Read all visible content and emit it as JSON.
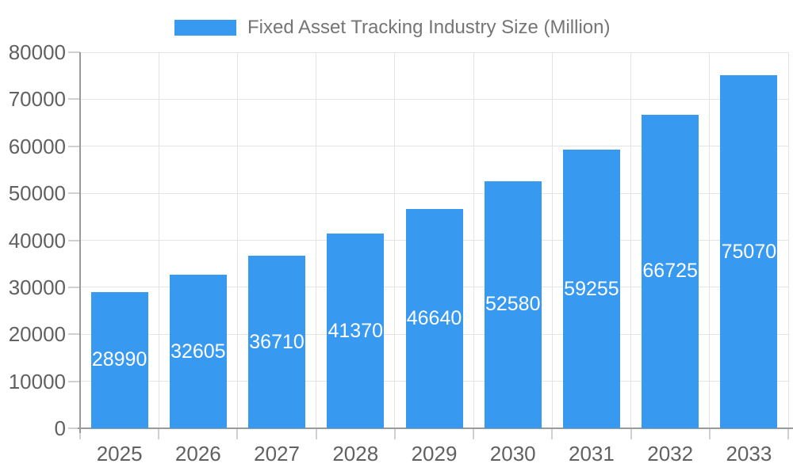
{
  "legend": {
    "label": "Fixed Asset Tracking Industry Size (Million)"
  },
  "chart_data": {
    "type": "bar",
    "title": "Fixed Asset Tracking Industry Size (Million)",
    "series_name": "Fixed Asset Tracking Industry Size (Million)",
    "categories": [
      "2025",
      "2026",
      "2027",
      "2028",
      "2029",
      "2030",
      "2031",
      "2032",
      "2033"
    ],
    "values": [
      28990,
      32605,
      36710,
      41370,
      46640,
      52580,
      59255,
      66725,
      75070
    ],
    "xlabel": "",
    "ylabel": "",
    "ylim": [
      0,
      80000
    ],
    "ytick_step": 10000,
    "ytick_labels": [
      "0",
      "10000",
      "20000",
      "30000",
      "40000",
      "50000",
      "60000",
      "70000",
      "80000"
    ],
    "grid": true,
    "legend_position": "top-center",
    "bar_labels_inside": true,
    "colors": {
      "bar": "#3899f0",
      "bar_label": "#ffffff",
      "axis_text": "#616161",
      "legend_text": "#757575",
      "gridline": "#e4e4e4",
      "axis_line": "#9a9a9a",
      "tick": "#d0d0d0",
      "background": "#ffffff"
    }
  }
}
